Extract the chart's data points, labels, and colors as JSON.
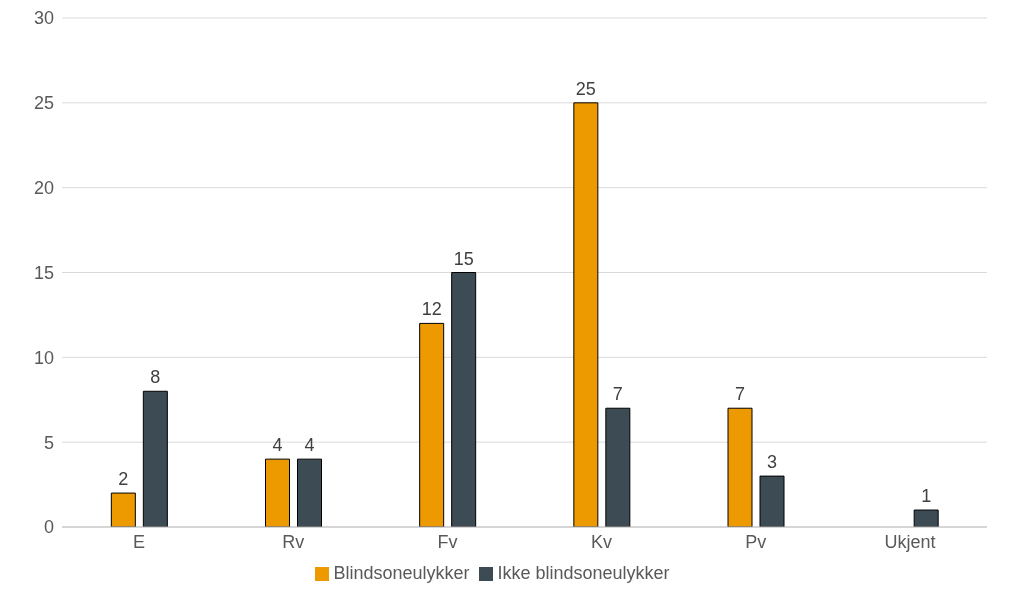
{
  "chart_data": {
    "type": "bar",
    "categories": [
      "E",
      "Rv",
      "Fv",
      "Kv",
      "Pv",
      "Ukjent"
    ],
    "series": [
      {
        "name": "Blindsoneulykker",
        "color": "#ed9a00",
        "values": [
          2,
          4,
          12,
          25,
          7,
          null
        ]
      },
      {
        "name": "Ikke blindsoneulykker",
        "color": "#3d4b55",
        "values": [
          8,
          4,
          15,
          7,
          3,
          1
        ]
      }
    ],
    "ylim": [
      0,
      30
    ],
    "yticks": [
      0,
      5,
      10,
      15,
      20,
      25,
      30
    ],
    "grid": "y",
    "legend": "bottom",
    "data_labels": true
  }
}
